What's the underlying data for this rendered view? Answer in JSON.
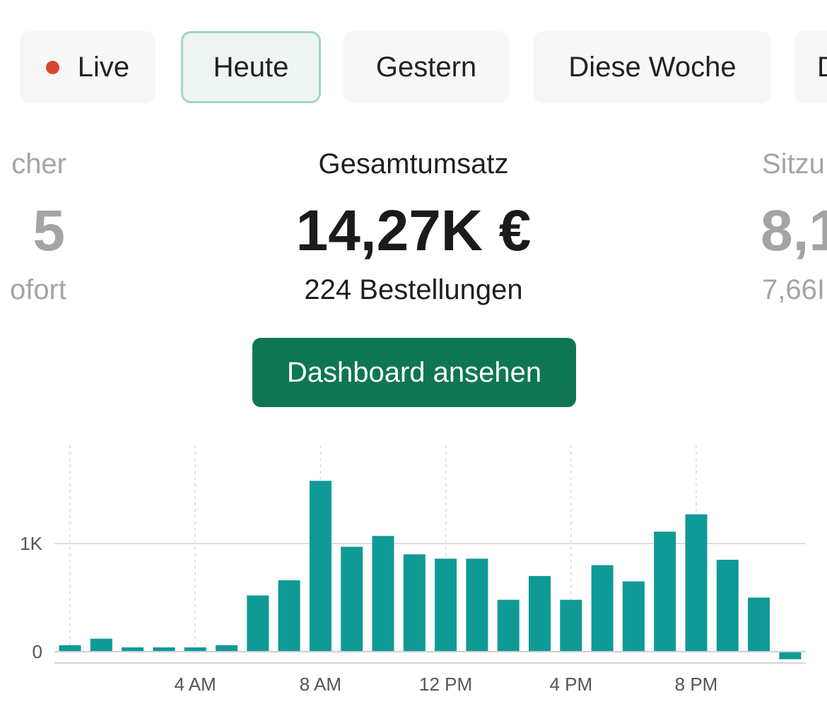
{
  "tabs": [
    {
      "label": "Live",
      "has_dot": true
    },
    {
      "label": "Heute",
      "active": true
    },
    {
      "label": "Gestern"
    },
    {
      "label": "Diese Woche"
    },
    {
      "label": "D"
    }
  ],
  "metrics": {
    "left": {
      "label": "cher",
      "value": "5",
      "sub": "ofort"
    },
    "center": {
      "label": "Gesamtumsatz",
      "value": "14,27K €",
      "sub": "224 Bestellungen"
    },
    "right": {
      "label": "Sitzu",
      "value": "8,1",
      "sub": "7,66I"
    }
  },
  "cta": {
    "label": "Dashboard ansehen"
  },
  "colors": {
    "accent": "#0e7652",
    "bar": "#0f9a96",
    "live_dot": "#d9452f"
  },
  "chart_data": {
    "type": "bar",
    "categories": [
      "12 AM",
      "1 AM",
      "2 AM",
      "3 AM",
      "4 AM",
      "5 AM",
      "6 AM",
      "7 AM",
      "8 AM",
      "9 AM",
      "10 AM",
      "11 AM",
      "12 PM",
      "1 PM",
      "2 PM",
      "3 PM",
      "4 PM",
      "5 PM",
      "6 PM",
      "7 PM",
      "8 PM",
      "9 PM",
      "10 PM",
      "11 PM"
    ],
    "values": [
      60,
      120,
      40,
      40,
      40,
      60,
      520,
      660,
      1580,
      970,
      1070,
      900,
      860,
      860,
      480,
      700,
      480,
      800,
      650,
      1110,
      1270,
      850,
      500,
      -70
    ],
    "x_tick_labels": [
      "4 AM",
      "8 AM",
      "12 PM",
      "4 PM",
      "8 PM"
    ],
    "y_tick_labels": [
      "0",
      "1K"
    ],
    "ylim": [
      -120,
      1900
    ]
  }
}
